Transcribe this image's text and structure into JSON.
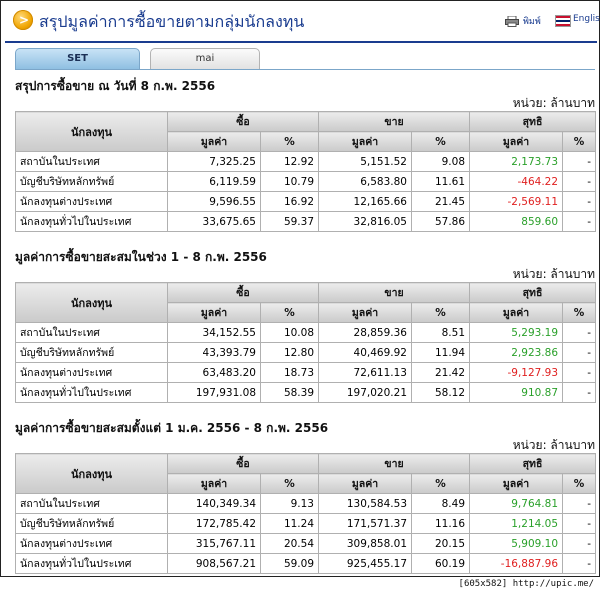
{
  "page_title": "สรุปมูลค่าการซื้อขายตามกลุ่มนักลงทุน",
  "title_icon_glyph": ">",
  "print_label": "พิมพ์",
  "english_label": "English",
  "tabs": [
    {
      "label": "SET",
      "active": true
    },
    {
      "label": "mai",
      "active": false
    }
  ],
  "colors": {
    "positive": "#2aa02a",
    "negative": "#e02020",
    "brand": "#1a3c8f"
  },
  "headers": {
    "investor": "นักลงทุน",
    "buy": "ซื้อ",
    "sell": "ขาย",
    "net": "สุทธิ",
    "value": "มูลค่า",
    "pct": "%"
  },
  "sections": [
    {
      "title": "สรุปการซื้อขาย ณ วันที่ 8 ก.พ. 2556",
      "unit": "หน่วย: ล้านบาท",
      "rows": [
        {
          "name": "สถาบันในประเทศ",
          "buy_value": "7,325.25",
          "buy_pct": "12.92",
          "sell_value": "5,151.52",
          "sell_pct": "9.08",
          "net_value": "2,173.73",
          "net_pct": "-",
          "net_sign": "pos"
        },
        {
          "name": "บัญชีบริษัทหลักทรัพย์",
          "buy_value": "6,119.59",
          "buy_pct": "10.79",
          "sell_value": "6,583.80",
          "sell_pct": "11.61",
          "net_value": "-464.22",
          "net_pct": "-",
          "net_sign": "neg"
        },
        {
          "name": "นักลงทุนต่างประเทศ",
          "buy_value": "9,596.55",
          "buy_pct": "16.92",
          "sell_value": "12,165.66",
          "sell_pct": "21.45",
          "net_value": "-2,569.11",
          "net_pct": "-",
          "net_sign": "neg"
        },
        {
          "name": "นักลงทุนทั่วไปในประเทศ",
          "buy_value": "33,675.65",
          "buy_pct": "59.37",
          "sell_value": "32,816.05",
          "sell_pct": "57.86",
          "net_value": "859.60",
          "net_pct": "-",
          "net_sign": "pos"
        }
      ]
    },
    {
      "title": "มูลค่าการซื้อขายสะสมในช่วง 1 - 8 ก.พ. 2556",
      "unit": "หน่วย: ล้านบาท",
      "rows": [
        {
          "name": "สถาบันในประเทศ",
          "buy_value": "34,152.55",
          "buy_pct": "10.08",
          "sell_value": "28,859.36",
          "sell_pct": "8.51",
          "net_value": "5,293.19",
          "net_pct": "-",
          "net_sign": "pos"
        },
        {
          "name": "บัญชีบริษัทหลักทรัพย์",
          "buy_value": "43,393.79",
          "buy_pct": "12.80",
          "sell_value": "40,469.92",
          "sell_pct": "11.94",
          "net_value": "2,923.86",
          "net_pct": "-",
          "net_sign": "pos"
        },
        {
          "name": "นักลงทุนต่างประเทศ",
          "buy_value": "63,483.20",
          "buy_pct": "18.73",
          "sell_value": "72,611.13",
          "sell_pct": "21.42",
          "net_value": "-9,127.93",
          "net_pct": "-",
          "net_sign": "neg"
        },
        {
          "name": "นักลงทุนทั่วไปในประเทศ",
          "buy_value": "197,931.08",
          "buy_pct": "58.39",
          "sell_value": "197,020.21",
          "sell_pct": "58.12",
          "net_value": "910.87",
          "net_pct": "-",
          "net_sign": "pos"
        }
      ]
    },
    {
      "title": "มูลค่าการซื้อขายสะสมตั้งแต่ 1 ม.ค. 2556 - 8 ก.พ. 2556",
      "unit": "หน่วย: ล้านบาท",
      "rows": [
        {
          "name": "สถาบันในประเทศ",
          "buy_value": "140,349.34",
          "buy_pct": "9.13",
          "sell_value": "130,584.53",
          "sell_pct": "8.49",
          "net_value": "9,764.81",
          "net_pct": "-",
          "net_sign": "pos"
        },
        {
          "name": "บัญชีบริษัทหลักทรัพย์",
          "buy_value": "172,785.42",
          "buy_pct": "11.24",
          "sell_value": "171,571.37",
          "sell_pct": "11.16",
          "net_value": "1,214.05",
          "net_pct": "-",
          "net_sign": "pos"
        },
        {
          "name": "นักลงทุนต่างประเทศ",
          "buy_value": "315,767.11",
          "buy_pct": "20.54",
          "sell_value": "309,858.01",
          "sell_pct": "20.15",
          "net_value": "5,909.10",
          "net_pct": "-",
          "net_sign": "pos"
        },
        {
          "name": "นักลงทุนทั่วไปในประเทศ",
          "buy_value": "908,567.21",
          "buy_pct": "59.09",
          "sell_value": "925,455.17",
          "sell_pct": "60.19",
          "net_value": "-16,887.96",
          "net_pct": "-",
          "net_sign": "neg"
        }
      ]
    }
  ],
  "footer": "[605x582] http://upic.me/"
}
